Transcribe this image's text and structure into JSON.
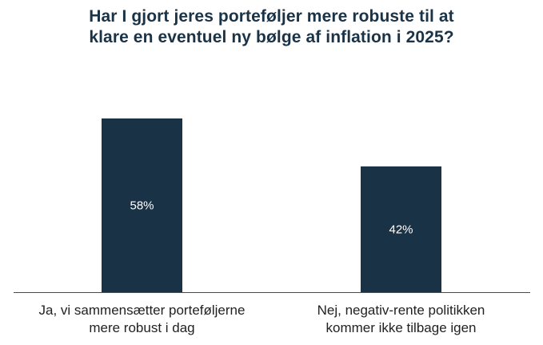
{
  "title_lines": [
    "Har I gjort jeres porteføljer mere robuste til at",
    "klare en eventuel ny bølge af inflation i 2025?"
  ],
  "colors": {
    "bar": "#1a3246",
    "title": "#1b3347",
    "axis": "#4a4a4a",
    "label": "#222222",
    "value_label": "#ffffff"
  },
  "chart_data": {
    "type": "bar",
    "title": "Har I gjort jeres porteføljer mere robuste til at klare en eventuel ny bølge af inflation i 2025?",
    "categories": [
      [
        "Ja, vi sammensætter porteføljerne",
        "mere robust i dag"
      ],
      [
        "Nej, negativ-rente politikken",
        "kommer ikke tilbage igen"
      ]
    ],
    "values": [
      58,
      42
    ],
    "data_labels": [
      "58%",
      "42%"
    ],
    "unit": "%",
    "xlabel": "",
    "ylabel": "",
    "ylim": [
      0,
      65
    ],
    "grid": false,
    "legend": "none"
  }
}
